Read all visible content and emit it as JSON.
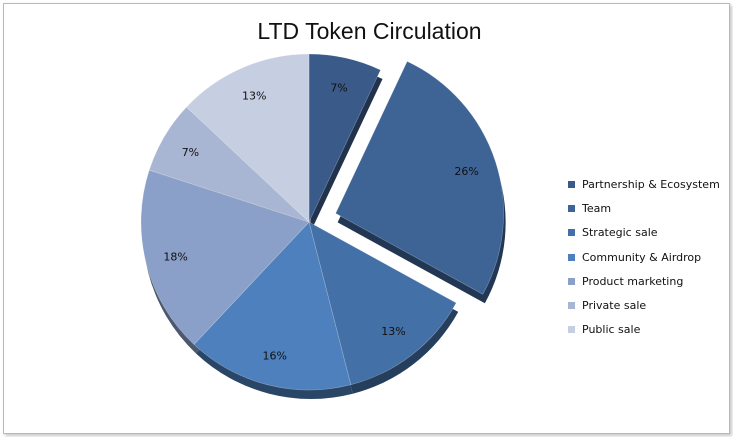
{
  "chart_data": {
    "type": "pie",
    "title": "LTD Token Circulation",
    "slices": [
      {
        "name": "Partnership & Ecosystem",
        "value": 7,
        "label": "7%",
        "color": "#3a5a8a",
        "exploded": false
      },
      {
        "name": "Team",
        "value": 26,
        "label": "26%",
        "color": "#3e6496",
        "exploded": true
      },
      {
        "name": "Strategic sale",
        "value": 13,
        "label": "13%",
        "color": "#4470a8",
        "exploded": false
      },
      {
        "name": "Community & Airdrop",
        "value": 16,
        "label": "16%",
        "color": "#4d80bc",
        "exploded": false
      },
      {
        "name": "Product marketing",
        "value": 18,
        "label": "18%",
        "color": "#8aa0c8",
        "exploded": false
      },
      {
        "name": "Private sale",
        "value": 7,
        "label": "7%",
        "color": "#a8b6d4",
        "exploded": false
      },
      {
        "name": "Public sale",
        "value": 13,
        "label": "13%",
        "color": "#c6cee2",
        "exploded": false
      }
    ],
    "legend_position": "right"
  }
}
